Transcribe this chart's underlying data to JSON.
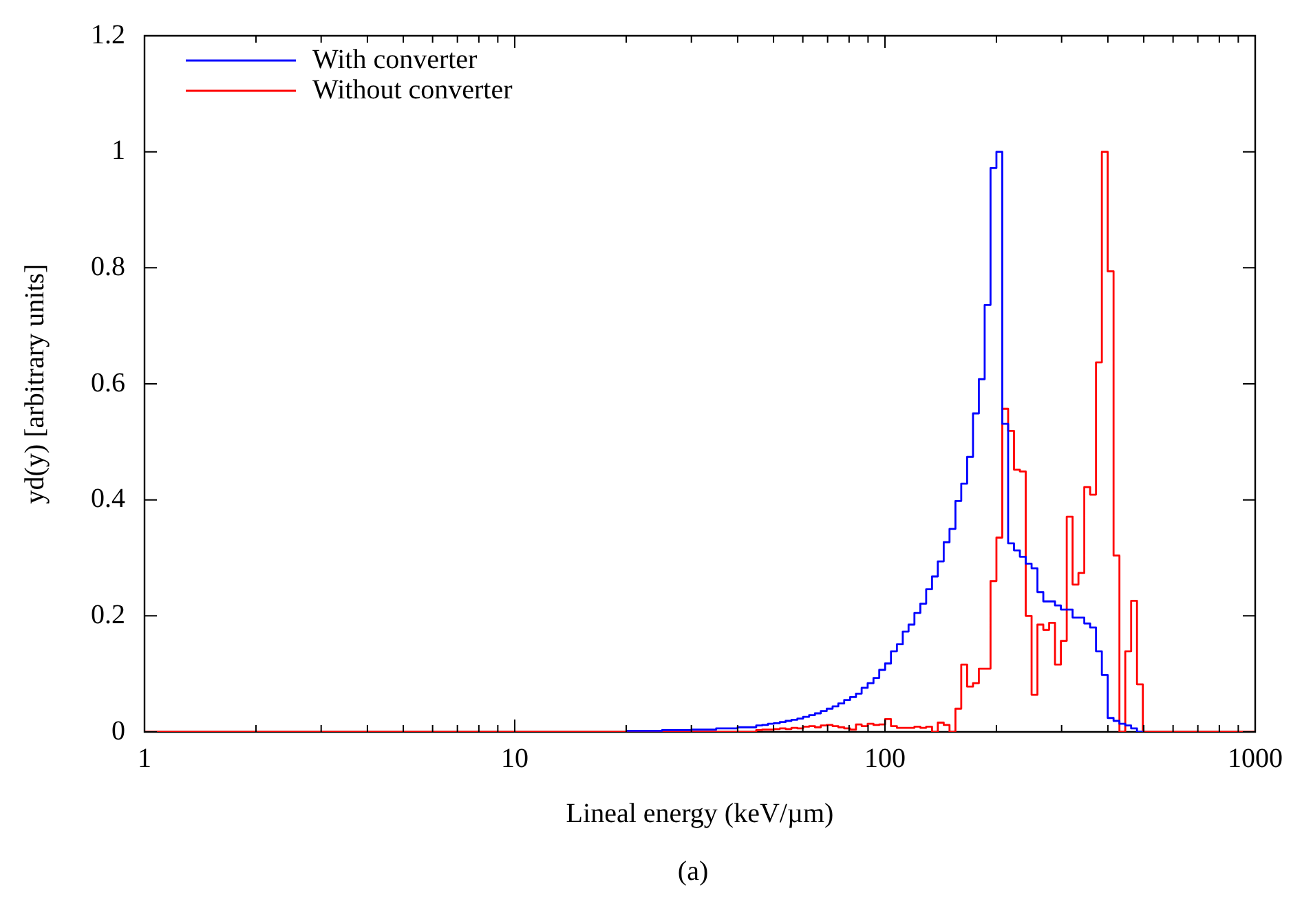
{
  "chart_data": {
    "type": "step",
    "xlabel": "Lineal energy (keV/µm)",
    "ylabel": "yd(y) [arbitrary units]",
    "annotations": [
      "(a)"
    ],
    "log": "x",
    "grid": false,
    "legend": "top left",
    "xlim": [
      1,
      1000
    ],
    "ylim": [
      0,
      1.2
    ],
    "xticks": [
      1,
      {
        "value": 2,
        "label": null
      },
      {
        "value": 3,
        "label": null
      },
      {
        "value": 4,
        "label": null
      },
      {
        "value": 5,
        "label": null
      },
      {
        "value": 6,
        "label": null
      },
      {
        "value": 7,
        "label": null
      },
      {
        "value": 8,
        "label": null
      },
      {
        "value": 9,
        "label": null
      },
      10,
      {
        "value": 20,
        "label": null
      },
      {
        "value": 30,
        "label": null
      },
      {
        "value": 40,
        "label": null
      },
      {
        "value": 50,
        "label": null
      },
      {
        "value": 60,
        "label": null
      },
      {
        "value": 70,
        "label": null
      },
      {
        "value": 80,
        "label": null
      },
      {
        "value": 90,
        "label": null
      },
      100,
      {
        "value": 200,
        "label": null
      },
      {
        "value": 300,
        "label": null
      },
      {
        "value": 400,
        "label": null
      },
      {
        "value": 500,
        "label": null
      },
      {
        "value": 600,
        "label": null
      },
      {
        "value": 700,
        "label": null
      },
      {
        "value": 800,
        "label": null
      },
      {
        "value": 900,
        "label": null
      },
      1000
    ],
    "yticks": [
      0,
      0.2,
      0.4,
      0.6,
      0.8,
      1,
      1.2
    ],
    "series": [
      {
        "name": "With converter",
        "color": "#0000ff",
        "x": [
          20,
          25,
          30,
          35,
          40,
          44.9,
          46.6,
          48.3,
          50.1,
          52.0,
          53.9,
          55.9,
          58.0,
          60.1,
          62.4,
          64.7,
          67.1,
          69.6,
          72.2,
          74.8,
          77.6,
          80.5,
          83.5,
          86.5,
          89.8,
          93.1,
          96.5,
          100.1,
          103.8,
          107.7,
          111.7,
          115.8,
          120.1,
          124.6,
          129.2,
          134.0,
          138.9,
          144.1,
          149.4,
          155.0,
          160.7,
          166.7,
          172.9,
          179.3,
          185.9,
          192.8,
          200,
          207.4,
          215.1,
          223.1,
          231.4,
          240.0,
          248.9,
          258.1,
          267.7,
          277.6,
          287.9,
          298.6,
          309.7,
          321.2,
          333.1,
          345.4,
          358.2,
          371.5,
          385.3,
          399.6,
          414.4,
          429.8,
          445.7,
          462.3,
          479.4,
          497.2
        ],
        "values": [
          0.002,
          0.003,
          0.004,
          0.006,
          0.008,
          0.011,
          0.012,
          0.014,
          0.015,
          0.017,
          0.019,
          0.021,
          0.023,
          0.026,
          0.029,
          0.032,
          0.036,
          0.04,
          0.044,
          0.049,
          0.055,
          0.06,
          0.066,
          0.076,
          0.084,
          0.093,
          0.107,
          0.118,
          0.139,
          0.151,
          0.173,
          0.185,
          0.205,
          0.221,
          0.246,
          0.268,
          0.294,
          0.327,
          0.35,
          0.398,
          0.428,
          0.474,
          0.549,
          0.608,
          0.736,
          0.972,
          1.0,
          0.531,
          0.325,
          0.313,
          0.302,
          0.29,
          0.282,
          0.241,
          0.225,
          0.225,
          0.218,
          0.211,
          0.211,
          0.197,
          0.197,
          0.187,
          0.18,
          0.139,
          0.098,
          0.024,
          0.019,
          0.014,
          0.011,
          0.006,
          0,
          0
        ]
      },
      {
        "name": "Without converter",
        "color": "#ff0000",
        "x": [
          1,
          39.6,
          44.9,
          46.6,
          48.3,
          50.1,
          52.0,
          53.9,
          55.9,
          58.0,
          60.1,
          62.4,
          64.7,
          67.1,
          69.6,
          72.2,
          74.8,
          77.6,
          80.5,
          83.5,
          86.5,
          89.8,
          93.1,
          96.5,
          100.1,
          103.8,
          107.7,
          111.7,
          115.8,
          120.1,
          124.6,
          129.2,
          134.0,
          138.9,
          144.1,
          149.4,
          155.0,
          160.7,
          166.7,
          172.9,
          179.3,
          185.9,
          192.8,
          200,
          207.4,
          215.1,
          223.1,
          231.4,
          240.0,
          248.9,
          258.1,
          267.7,
          277.6,
          287.9,
          298.6,
          309.7,
          321.2,
          333.1,
          345.4,
          358.2,
          371.5,
          385.3,
          399.6,
          414.4,
          429.8,
          445.7,
          462.3,
          479.4,
          497.2,
          1000
        ],
        "values": [
          0,
          0,
          0.003,
          0.004,
          0.004,
          0.005,
          0.006,
          0.005,
          0.007,
          0.006,
          0.009,
          0.01,
          0.008,
          0.011,
          0.012,
          0.01,
          0.008,
          0.006,
          0.004,
          0.013,
          0.01,
          0.014,
          0.012,
          0.013,
          0.022,
          0.01,
          0.007,
          0.007,
          0.007,
          0.009,
          0.007,
          0.009,
          0,
          0.016,
          0.012,
          0,
          0.04,
          0.116,
          0.078,
          0.084,
          0.109,
          0.109,
          0.26,
          0.335,
          0.557,
          0.519,
          0.452,
          0.449,
          0.2,
          0.064,
          0.185,
          0.176,
          0.188,
          0.116,
          0.157,
          0.371,
          0.254,
          0.274,
          0.422,
          0.409,
          0.637,
          1.0,
          0.794,
          0.304,
          0,
          0.139,
          0.226,
          0.082,
          0,
          0
        ]
      }
    ]
  }
}
